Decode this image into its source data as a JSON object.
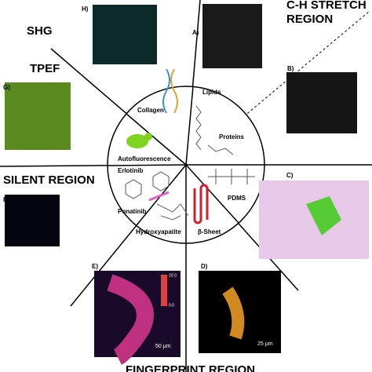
{
  "regions": {
    "shg": "SHG",
    "tpef": "TPEF",
    "silent": "SILENT REGION",
    "ch_stretch_1": "C-H STRETCH",
    "ch_stretch_2": "REGION",
    "fingerprint": "FINGERPRINT REGION"
  },
  "panels": {
    "h": "H)",
    "a": "A)",
    "b": "B)",
    "g": "G)",
    "c": "C)",
    "f": "F)",
    "e": "E)",
    "d": "D)"
  },
  "center_labels": {
    "collagen": "Collagen",
    "lipids": "Lipids",
    "proteins": "Proteins",
    "autofluorescence": "Autofluorescence",
    "erlotinib": "Erlotinib",
    "pdms": "PDMS",
    "ponatinib": "Ponatinib",
    "hydroxyapatite": "Hydroxyapatite",
    "beta_sheet": "β-Sheet"
  },
  "colorbar": {
    "max": "10.0",
    "min": "0.0"
  },
  "scale_bars": {
    "e": "50 µm",
    "d": "25 µm"
  }
}
